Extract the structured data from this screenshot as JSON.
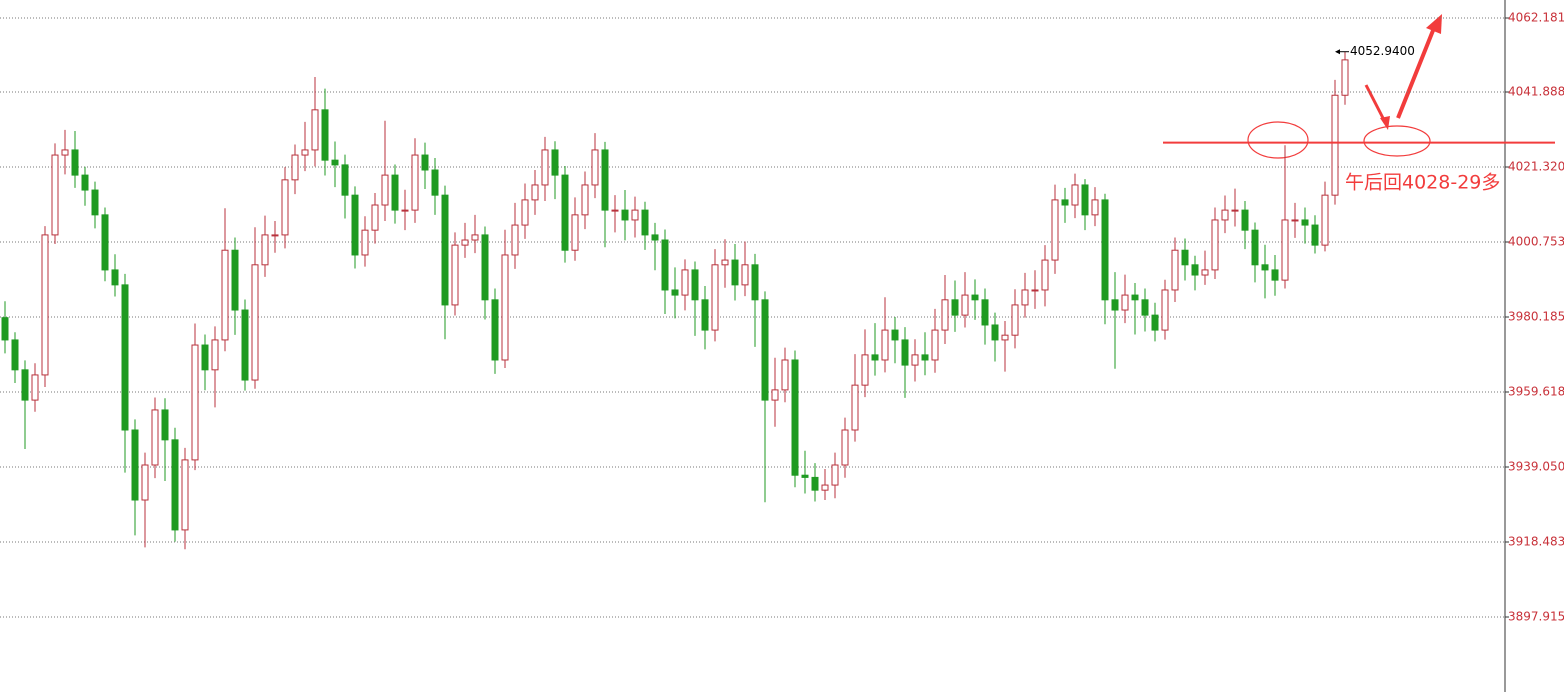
{
  "chart_data": {
    "type": "candlestick",
    "annotation": "午后回4028-29多",
    "ylim": [
      3877.35,
      4067.12
    ],
    "yticks": [
      4062.181,
      4041.888,
      {
        "value": 4021.32,
        "label": "4021.320"
      },
      4000.753,
      3980.185,
      3959.618,
      {
        "value": 3939.05,
        "label": "3939.050"
      },
      3918.483,
      3897.915
    ],
    "grid": true,
    "up_color": "#b8323c",
    "down_color": "#1f9a22",
    "level_line": 4028,
    "level_color": "#f23c3c",
    "max_label": {
      "value": 4052.94,
      "label": "4052.9400"
    },
    "open": [
      3980.0,
      3973.9,
      3965.7,
      3957.4,
      3964.3,
      4002.7,
      4024.6,
      4026.0,
      4019.1,
      4015.0,
      4008.2,
      3993.1,
      3989.0,
      3949.2,
      3930.0,
      3939.6,
      3954.7,
      3946.5,
      3921.8,
      3941.0,
      3972.5,
      3965.7,
      3973.9,
      3998.5,
      3982.1,
      3962.9,
      3994.5,
      4002.7,
      4002.7,
      4017.8,
      4024.6,
      4026.0,
      4037.0,
      4023.2,
      4021.9,
      4013.6,
      3997.2,
      4004.0,
      4010.9,
      4019.1,
      4009.5,
      4009.5,
      4024.6,
      4020.5,
      4013.6,
      3983.5,
      3999.9,
      4001.3,
      4002.7,
      3984.9,
      3968.4,
      3997.2,
      4005.4,
      4012.3,
      4016.4,
      4026.0,
      4019.1,
      3998.5,
      4008.2,
      4016.4,
      4026.0,
      4009.5,
      4009.5,
      4006.8,
      4009.5,
      4002.7,
      4001.3,
      3987.6,
      3986.2,
      3993.1,
      3984.9,
      3976.6,
      3994.5,
      3995.8,
      3989.0,
      3994.5,
      3984.9,
      3957.4,
      3960.2,
      3968.4,
      3936.8,
      3936.2,
      3932.7,
      3934.1,
      3939.6,
      3949.2,
      3961.5,
      3969.8,
      3968.4,
      3976.6,
      3973.9,
      3967.0,
      3969.8,
      3968.4,
      3976.6,
      3984.9,
      3980.7,
      3986.2,
      3984.9,
      3978.0,
      3973.9,
      3975.2,
      3983.5,
      3987.6,
      3987.6,
      3995.8,
      4012.3,
      4010.9,
      4016.4,
      4008.2,
      4012.3,
      3984.9,
      3982.1,
      3986.2,
      3984.9,
      3980.7,
      3976.6,
      3987.6,
      3998.5,
      3994.5,
      3991.7,
      3993.1,
      4006.8,
      4009.5,
      4009.5,
      4004.0,
      3994.5,
      3993.1,
      3990.3,
      4006.8,
      4006.8,
      4005.4,
      3999.9,
      4013.6,
      4041.0
    ],
    "high": [
      3984.5,
      3976.0,
      3968.3,
      3967.5,
      4005.1,
      4027.8,
      4031.5,
      4031.2,
      4021.4,
      4017.3,
      4010.2,
      3997.4,
      3992.0,
      3952.1,
      3943.0,
      3958.1,
      3957.9,
      3949.8,
      3944.3,
      3978.4,
      3975.4,
      3977.6,
      4010.0,
      4002.0,
      3985.0,
      4004.8,
      4008.0,
      4006.5,
      4021.3,
      4027.5,
      4033.7,
      4046.0,
      4042.8,
      4028.3,
      4024.7,
      4016.0,
      4007.8,
      4014.2,
      4034.0,
      4022.0,
      4015.1,
      4029.2,
      4028.0,
      4023.8,
      4016.2,
      4003.4,
      4006.0,
      4008.2,
      4005.0,
      3988.0,
      4004.1,
      4011.5,
      4016.8,
      4020.5,
      4029.6,
      4028.4,
      4021.6,
      4013.0,
      4020.1,
      4030.6,
      4028.2,
      4013.6,
      4015.0,
      4013.2,
      4011.8,
      4006.0,
      4004.2,
      3993.8,
      3996.0,
      3995.4,
      3988.7,
      3998.8,
      4001.5,
      4000.2,
      4000.9,
      3997.5,
      3987.2,
      3969.0,
      3971.8,
      3971.0,
      3943.5,
      3940.1,
      3938.5,
      3943.0,
      3952.6,
      3970.0,
      3976.8,
      3978.5,
      3985.6,
      3980.2,
      3977.4,
      3974.1,
      3976.0,
      3982.4,
      3991.7,
      3990.2,
      3992.5,
      3990.5,
      3988.0,
      3981.4,
      3979.1,
      3987.8,
      3992.3,
      3993.0,
      3999.9,
      4016.5,
      4015.6,
      4019.5,
      4018.0,
      4015.8,
      4014.0,
      3992.5,
      3991.8,
      3989.5,
      3988.0,
      3984.1,
      3990.4,
      4002.0,
      4001.7,
      3997.0,
      3998.4,
      4010.2,
      4013.5,
      4015.4,
      4012.0,
      4006.1,
      4000.0,
      3997.2,
      4027.3,
      4011.5,
      4010.2,
      4008.1,
      4017.3,
      4045.2,
      4052.94
    ],
    "low": [
      3970.2,
      3962.1,
      3944.0,
      3954.2,
      3961.0,
      4000.2,
      4019.3,
      4015.6,
      4010.7,
      4004.5,
      3990.0,
      3985.8,
      3937.5,
      3920.3,
      3917.0,
      3936.0,
      3935.2,
      3918.6,
      3916.5,
      3938.2,
      3960.1,
      3955.4,
      3970.8,
      3975.3,
      3960.0,
      3960.5,
      3991.2,
      3997.8,
      3999.0,
      4013.9,
      4020.2,
      4021.5,
      4019.0,
      4015.8,
      4007.2,
      3993.5,
      3994.0,
      4000.3,
      4006.5,
      4005.8,
      4004.0,
      4006.0,
      4015.3,
      4008.2,
      3974.1,
      3980.6,
      3996.4,
      3997.7,
      3979.5,
      3964.6,
      3966.2,
      3993.4,
      4001.6,
      4008.2,
      4012.0,
      4012.5,
      3995.1,
      3995.6,
      4004.3,
      4012.8,
      3999.3,
      4003.4,
      4001.2,
      4002.0,
      3998.6,
      3993.0,
      3981.0,
      3979.8,
      3982.0,
      3975.0,
      3971.3,
      3973.5,
      3988.2,
      3984.7,
      3985.9,
      3972.0,
      3929.4,
      3950.1,
      3956.8,
      3933.5,
      3931.8,
      3929.6,
      3930.0,
      3930.5,
      3936.1,
      3946.0,
      3958.2,
      3964.1,
      3965.0,
      3967.5,
      3958.0,
      3962.5,
      3964.2,
      3964.9,
      3972.8,
      3976.1,
      3977.3,
      3979.4,
      3972.6,
      3968.0,
      3965.2,
      3971.6,
      3980.0,
      3982.4,
      3983.1,
      3992.0,
      4006.0,
      4007.3,
      4004.0,
      4005.1,
      3978.2,
      3966.0,
      3978.5,
      3975.4,
      3976.2,
      3973.5,
      3974.0,
      3984.3,
      3990.2,
      3987.5,
      3989.0,
      3990.6,
      4003.2,
      4005.0,
      3998.8,
      3989.7,
      3985.3,
      3986.0,
      3988.0,
      4001.9,
      4000.3,
      3997.6,
      3998.2,
      4011.0,
      4038.4
    ],
    "close": [
      3973.9,
      3965.7,
      3957.4,
      3964.3,
      4002.7,
      4024.6,
      4026.0,
      4019.1,
      4015.0,
      4008.2,
      3993.1,
      3989.0,
      3949.2,
      3930.0,
      3939.6,
      3954.7,
      3946.5,
      3921.8,
      3941.0,
      3972.5,
      3965.7,
      3973.9,
      3998.5,
      3982.1,
      3962.9,
      3994.5,
      4002.7,
      4002.7,
      4017.8,
      4024.6,
      4026.0,
      4037.0,
      4023.2,
      4021.9,
      4013.6,
      3997.2,
      4004.0,
      4010.9,
      4019.1,
      4009.5,
      4009.5,
      4024.6,
      4020.5,
      4013.6,
      3983.5,
      3999.9,
      4001.3,
      4002.7,
      3984.9,
      3968.4,
      3997.2,
      4005.4,
      4012.3,
      4016.4,
      4026.0,
      4019.1,
      3998.5,
      4008.2,
      4016.4,
      4026.0,
      4009.5,
      4009.5,
      4006.8,
      4009.5,
      4002.7,
      4001.3,
      3987.6,
      3986.2,
      3993.1,
      3984.9,
      3976.6,
      3994.5,
      3995.8,
      3989.0,
      3994.5,
      3984.9,
      3957.4,
      3960.2,
      3968.4,
      3936.8,
      3936.2,
      3932.7,
      3934.1,
      3939.6,
      3949.2,
      3961.5,
      3969.8,
      3968.4,
      3976.6,
      3973.9,
      3967.0,
      3969.8,
      3968.4,
      3976.6,
      3984.9,
      3980.7,
      3986.2,
      3984.9,
      3978.0,
      3973.9,
      3975.2,
      3983.5,
      3987.6,
      3987.6,
      3995.8,
      4012.3,
      4010.9,
      4016.4,
      4008.2,
      4012.3,
      3984.9,
      3982.1,
      3986.2,
      3984.9,
      3980.7,
      3976.6,
      3987.6,
      3998.5,
      3994.5,
      3991.7,
      3993.1,
      4006.8,
      4009.5,
      4009.5,
      4004.0,
      3994.5,
      3993.1,
      3990.3,
      4006.8,
      4006.8,
      4005.4,
      3999.9,
      4013.6,
      4041.0,
      4050.7
    ]
  }
}
